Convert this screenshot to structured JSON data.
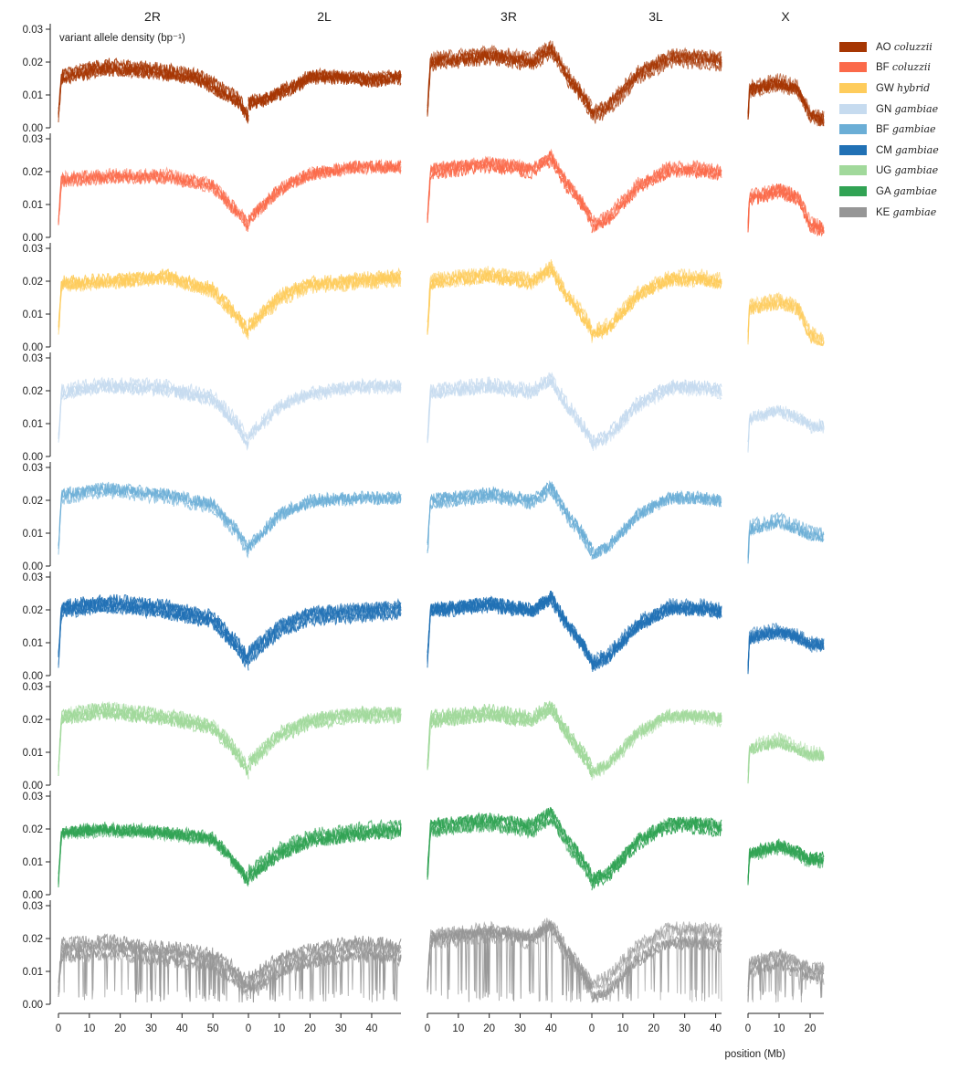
{
  "chart_data": {
    "type": "line",
    "arms": [
      {
        "name": "2R",
        "xlim": [
          0,
          61.5
        ],
        "ticks": [
          0,
          10,
          20,
          30,
          40,
          50
        ]
      },
      {
        "name": "2L",
        "xlim": [
          0,
          49.5
        ],
        "ticks": [
          0,
          10,
          20,
          30,
          40
        ]
      },
      {
        "name": "3R",
        "xlim": [
          0,
          53.2
        ],
        "ticks": [
          0,
          10,
          20,
          30,
          40
        ]
      },
      {
        "name": "3L",
        "xlim": [
          0,
          41.9
        ],
        "ticks": [
          0,
          10,
          20,
          30,
          40
        ]
      },
      {
        "name": "X",
        "xlim": [
          0,
          24.4
        ],
        "ticks": [
          0,
          10,
          20
        ]
      }
    ],
    "ylabel": "variant allele density (bp⁻¹)",
    "xlabel": "position (Mb)",
    "ylim": [
      0,
      0.03
    ],
    "yticks": [
      "0.00",
      "0.01",
      "0.02",
      "0.03"
    ],
    "grid": false,
    "legend_position": "top-right",
    "populations": [
      {
        "code": "AO",
        "species": "coluzzii",
        "color": "#a63603",
        "n_lines": 6,
        "spread": 0.0032,
        "x_max": 0.0025,
        "shape_2R": [
          [
            0,
            0.004
          ],
          [
            1,
            0.016
          ],
          [
            15,
            0.019
          ],
          [
            30,
            0.018
          ],
          [
            45,
            0.016
          ],
          [
            58,
            0.009
          ],
          [
            61.5,
            0.004
          ]
        ],
        "shape_2L": [
          [
            0,
            0.007
          ],
          [
            5,
            0.008
          ],
          [
            15,
            0.012
          ],
          [
            20,
            0.015
          ],
          [
            30,
            0.015
          ],
          [
            40,
            0.014
          ],
          [
            49,
            0.015
          ]
        ]
      },
      {
        "code": "BF",
        "species": "coluzzii",
        "color": "#fb6a4a",
        "n_lines": 5,
        "spread": 0.0024,
        "x_max": 0.0022,
        "shape_2R": [
          [
            0,
            0.005
          ],
          [
            1,
            0.018
          ],
          [
            20,
            0.019
          ],
          [
            35,
            0.019
          ],
          [
            50,
            0.016
          ],
          [
            58,
            0.008
          ],
          [
            61.5,
            0.004
          ]
        ],
        "shape_2L": [
          [
            0,
            0.005
          ],
          [
            10,
            0.014
          ],
          [
            20,
            0.019
          ],
          [
            35,
            0.021
          ],
          [
            49,
            0.021
          ]
        ]
      },
      {
        "code": "GW",
        "species": "hybrid",
        "color": "#fecc5c",
        "n_lines": 5,
        "spread": 0.0024,
        "x_max": 0.0015,
        "shape_2R": [
          [
            0,
            0.005
          ],
          [
            1,
            0.019
          ],
          [
            20,
            0.02
          ],
          [
            35,
            0.021
          ],
          [
            50,
            0.017
          ],
          [
            58,
            0.009
          ],
          [
            61.5,
            0.004
          ]
        ],
        "shape_2L": [
          [
            0,
            0.006
          ],
          [
            10,
            0.015
          ],
          [
            20,
            0.019
          ],
          [
            35,
            0.02
          ],
          [
            49,
            0.021
          ]
        ]
      },
      {
        "code": "GN",
        "species": "gambiae",
        "color": "#c6dbef",
        "n_lines": 4,
        "spread": 0.0022,
        "x_max": 0.0095,
        "shape_2R": [
          [
            0,
            0.005
          ],
          [
            1,
            0.02
          ],
          [
            15,
            0.022
          ],
          [
            35,
            0.021
          ],
          [
            50,
            0.018
          ],
          [
            58,
            0.01
          ],
          [
            61.5,
            0.004
          ]
        ],
        "shape_2L": [
          [
            0,
            0.006
          ],
          [
            10,
            0.015
          ],
          [
            20,
            0.019
          ],
          [
            35,
            0.021
          ],
          [
            49,
            0.021
          ]
        ]
      },
      {
        "code": "BF",
        "species": "gambiae",
        "color": "#6baed6",
        "n_lines": 4,
        "spread": 0.0022,
        "x_max": 0.01,
        "shape_2R": [
          [
            0,
            0.005
          ],
          [
            1,
            0.021
          ],
          [
            15,
            0.023
          ],
          [
            35,
            0.021
          ],
          [
            50,
            0.018
          ],
          [
            58,
            0.01
          ],
          [
            61.5,
            0.004
          ]
        ],
        "shape_2L": [
          [
            0,
            0.006
          ],
          [
            10,
            0.016
          ],
          [
            20,
            0.02
          ],
          [
            35,
            0.021
          ],
          [
            49,
            0.021
          ]
        ]
      },
      {
        "code": "CM",
        "species": "gambiae",
        "color": "#2171b5",
        "n_lines": 7,
        "spread": 0.0032,
        "x_max": 0.01,
        "shape_2R": [
          [
            0,
            0.005
          ],
          [
            1,
            0.02
          ],
          [
            15,
            0.022
          ],
          [
            35,
            0.02
          ],
          [
            50,
            0.017
          ],
          [
            58,
            0.009
          ],
          [
            61.5,
            0.004
          ]
        ],
        "shape_2L": [
          [
            0,
            0.006
          ],
          [
            10,
            0.014
          ],
          [
            20,
            0.018
          ],
          [
            35,
            0.019
          ],
          [
            49,
            0.02
          ]
        ]
      },
      {
        "code": "UG",
        "species": "gambiae",
        "color": "#a1d99b",
        "n_lines": 5,
        "spread": 0.0026,
        "x_max": 0.01,
        "shape_2R": [
          [
            0,
            0.005
          ],
          [
            1,
            0.021
          ],
          [
            15,
            0.023
          ],
          [
            35,
            0.021
          ],
          [
            50,
            0.018
          ],
          [
            58,
            0.01
          ],
          [
            61.5,
            0.004
          ]
        ],
        "shape_2L": [
          [
            0,
            0.006
          ],
          [
            10,
            0.015
          ],
          [
            20,
            0.019
          ],
          [
            35,
            0.021
          ],
          [
            49,
            0.021
          ]
        ]
      },
      {
        "code": "GA",
        "species": "gambiae",
        "color": "#31a354",
        "n_lines": 6,
        "spread": 0.003,
        "x_max": 0.01,
        "shape_2R": [
          [
            0,
            0.004
          ],
          [
            1,
            0.019
          ],
          [
            15,
            0.02
          ],
          [
            35,
            0.019
          ],
          [
            50,
            0.017
          ],
          [
            58,
            0.009
          ],
          [
            61.5,
            0.004
          ]
        ],
        "shape_2L": [
          [
            0,
            0.006
          ],
          [
            10,
            0.013
          ],
          [
            20,
            0.017
          ],
          [
            35,
            0.019
          ],
          [
            49,
            0.02
          ]
        ]
      },
      {
        "code": "KE",
        "species": "gambiae",
        "color": "#969696",
        "n_lines": 6,
        "spread": 0.0055,
        "x_max": 0.01,
        "shape_2R": [
          [
            0,
            0.004
          ],
          [
            1,
            0.016
          ],
          [
            15,
            0.017
          ],
          [
            35,
            0.015
          ],
          [
            50,
            0.013
          ],
          [
            58,
            0.008
          ],
          [
            61.5,
            0.004
          ]
        ],
        "shape_2L": [
          [
            0,
            0.006
          ],
          [
            10,
            0.012
          ],
          [
            20,
            0.015
          ],
          [
            35,
            0.017
          ],
          [
            49,
            0.016
          ]
        ]
      }
    ],
    "shape_3R": [
      [
        0,
        0.005
      ],
      [
        1,
        0.02
      ],
      [
        20,
        0.022
      ],
      [
        34,
        0.02
      ],
      [
        40,
        0.024
      ],
      [
        45,
        0.016
      ],
      [
        50,
        0.01
      ],
      [
        53.2,
        0.005
      ]
    ],
    "shape_3L": [
      [
        0,
        0.004
      ],
      [
        5,
        0.006
      ],
      [
        15,
        0.016
      ],
      [
        25,
        0.021
      ],
      [
        35,
        0.021
      ],
      [
        41.9,
        0.02
      ]
    ],
    "shape_X": [
      [
        0,
        0.003
      ],
      [
        0.5,
        0.012
      ],
      [
        10,
        0.014
      ],
      [
        16,
        0.012
      ],
      [
        20,
        0.007
      ],
      [
        24.4,
        0.007
      ]
    ]
  }
}
